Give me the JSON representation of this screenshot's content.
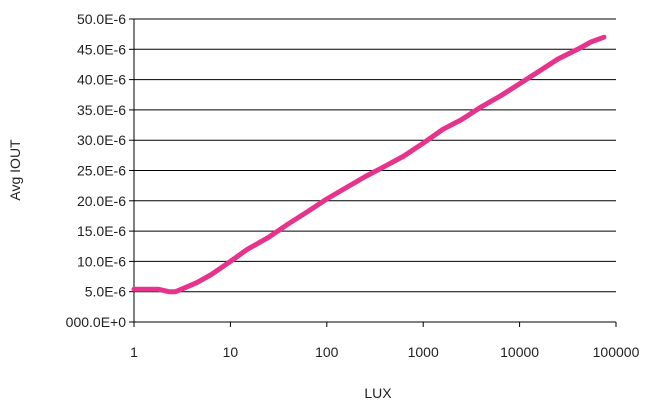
{
  "chart_data": {
    "type": "line",
    "xlabel": "LUX",
    "ylabel": "Avg IOUT",
    "x_scale": "log",
    "xlim": [
      1,
      100000
    ],
    "ylim": [
      0,
      5e-05
    ],
    "grid": {
      "horizontal": true,
      "vertical": false
    },
    "x_ticks": [
      {
        "value": 1,
        "label": "1"
      },
      {
        "value": 10,
        "label": "10"
      },
      {
        "value": 100,
        "label": "100"
      },
      {
        "value": 1000,
        "label": "1000"
      },
      {
        "value": 10000,
        "label": "10000"
      },
      {
        "value": 100000,
        "label": "100000"
      }
    ],
    "y_ticks": [
      {
        "value": 0,
        "label": "000.0E+0"
      },
      {
        "value": 5e-06,
        "label": "5.0E-6"
      },
      {
        "value": 1e-05,
        "label": "10.0E-6"
      },
      {
        "value": 1.5e-05,
        "label": "15.0E-6"
      },
      {
        "value": 2e-05,
        "label": "20.0E-6"
      },
      {
        "value": 2.5e-05,
        "label": "25.0E-6"
      },
      {
        "value": 3e-05,
        "label": "30.0E-6"
      },
      {
        "value": 3.5e-05,
        "label": "35.0E-6"
      },
      {
        "value": 4e-05,
        "label": "40.0E-6"
      },
      {
        "value": 4.5e-05,
        "label": "45.0E-6"
      },
      {
        "value": 5e-05,
        "label": "50.0E-6"
      }
    ],
    "series": [
      {
        "color": "#e6338c",
        "points": [
          [
            1,
            5.4e-06
          ],
          [
            1.8,
            5.4e-06
          ],
          [
            2.3,
            5e-06
          ],
          [
            2.7,
            5e-06
          ],
          [
            3.2,
            5.5e-06
          ],
          [
            4.5,
            6.5e-06
          ],
          [
            6.3,
            7.8e-06
          ],
          [
            10,
            1e-05
          ],
          [
            15,
            1.2e-05
          ],
          [
            25,
            1.4e-05
          ],
          [
            40,
            1.62e-05
          ],
          [
            63,
            1.82e-05
          ],
          [
            100,
            2.03e-05
          ],
          [
            160,
            2.22e-05
          ],
          [
            250,
            2.4e-05
          ],
          [
            400,
            2.57e-05
          ],
          [
            630,
            2.74e-05
          ],
          [
            1000,
            2.95e-05
          ],
          [
            1600,
            3.18e-05
          ],
          [
            2500,
            3.34e-05
          ],
          [
            4000,
            3.55e-05
          ],
          [
            6300,
            3.73e-05
          ],
          [
            10000,
            3.93e-05
          ],
          [
            16000,
            4.14e-05
          ],
          [
            25000,
            4.34e-05
          ],
          [
            40000,
            4.5e-05
          ],
          [
            55000,
            4.62e-05
          ],
          [
            75000,
            4.7e-05
          ]
        ]
      }
    ]
  }
}
